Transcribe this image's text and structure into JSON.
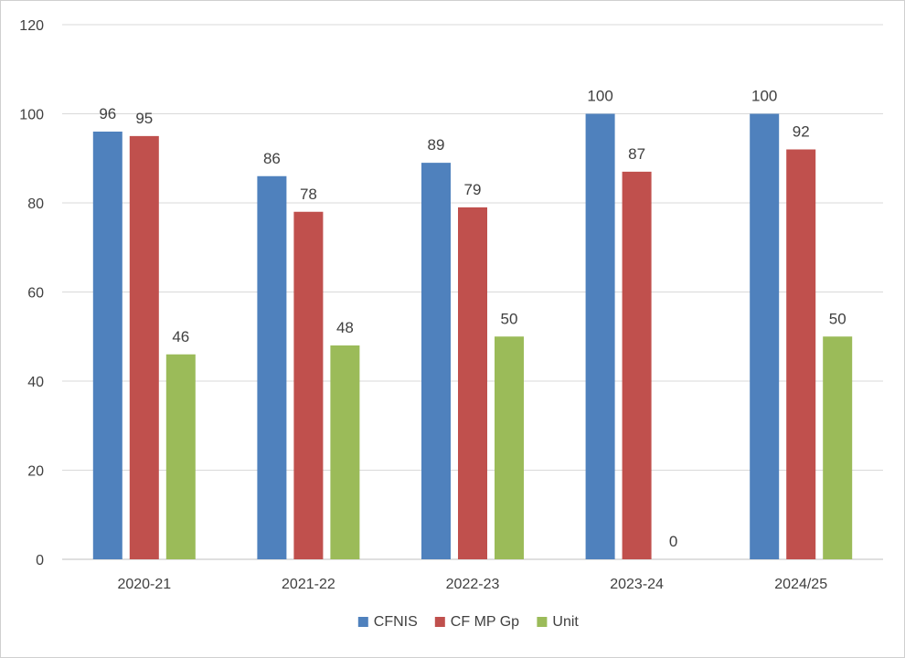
{
  "chart_data": {
    "type": "bar",
    "title": "",
    "xlabel": "",
    "ylabel": "",
    "categories": [
      "2020-21",
      "2021-22",
      "2022-23",
      "2023-24",
      "2024/25"
    ],
    "series": [
      {
        "name": "CFNIS",
        "color": "#4f81bd",
        "values": [
          96,
          86,
          89,
          100,
          100
        ]
      },
      {
        "name": "CF MP Gp",
        "color": "#c0504d",
        "values": [
          95,
          78,
          79,
          87,
          92
        ]
      },
      {
        "name": "Unit",
        "color": "#9bbb59",
        "values": [
          46,
          48,
          50,
          0,
          50
        ]
      }
    ],
    "ylim": [
      0,
      120
    ],
    "yticks": [
      0,
      20,
      40,
      60,
      80,
      100,
      120
    ],
    "grid": true,
    "legend": "bottom-center",
    "data_labels": true
  }
}
